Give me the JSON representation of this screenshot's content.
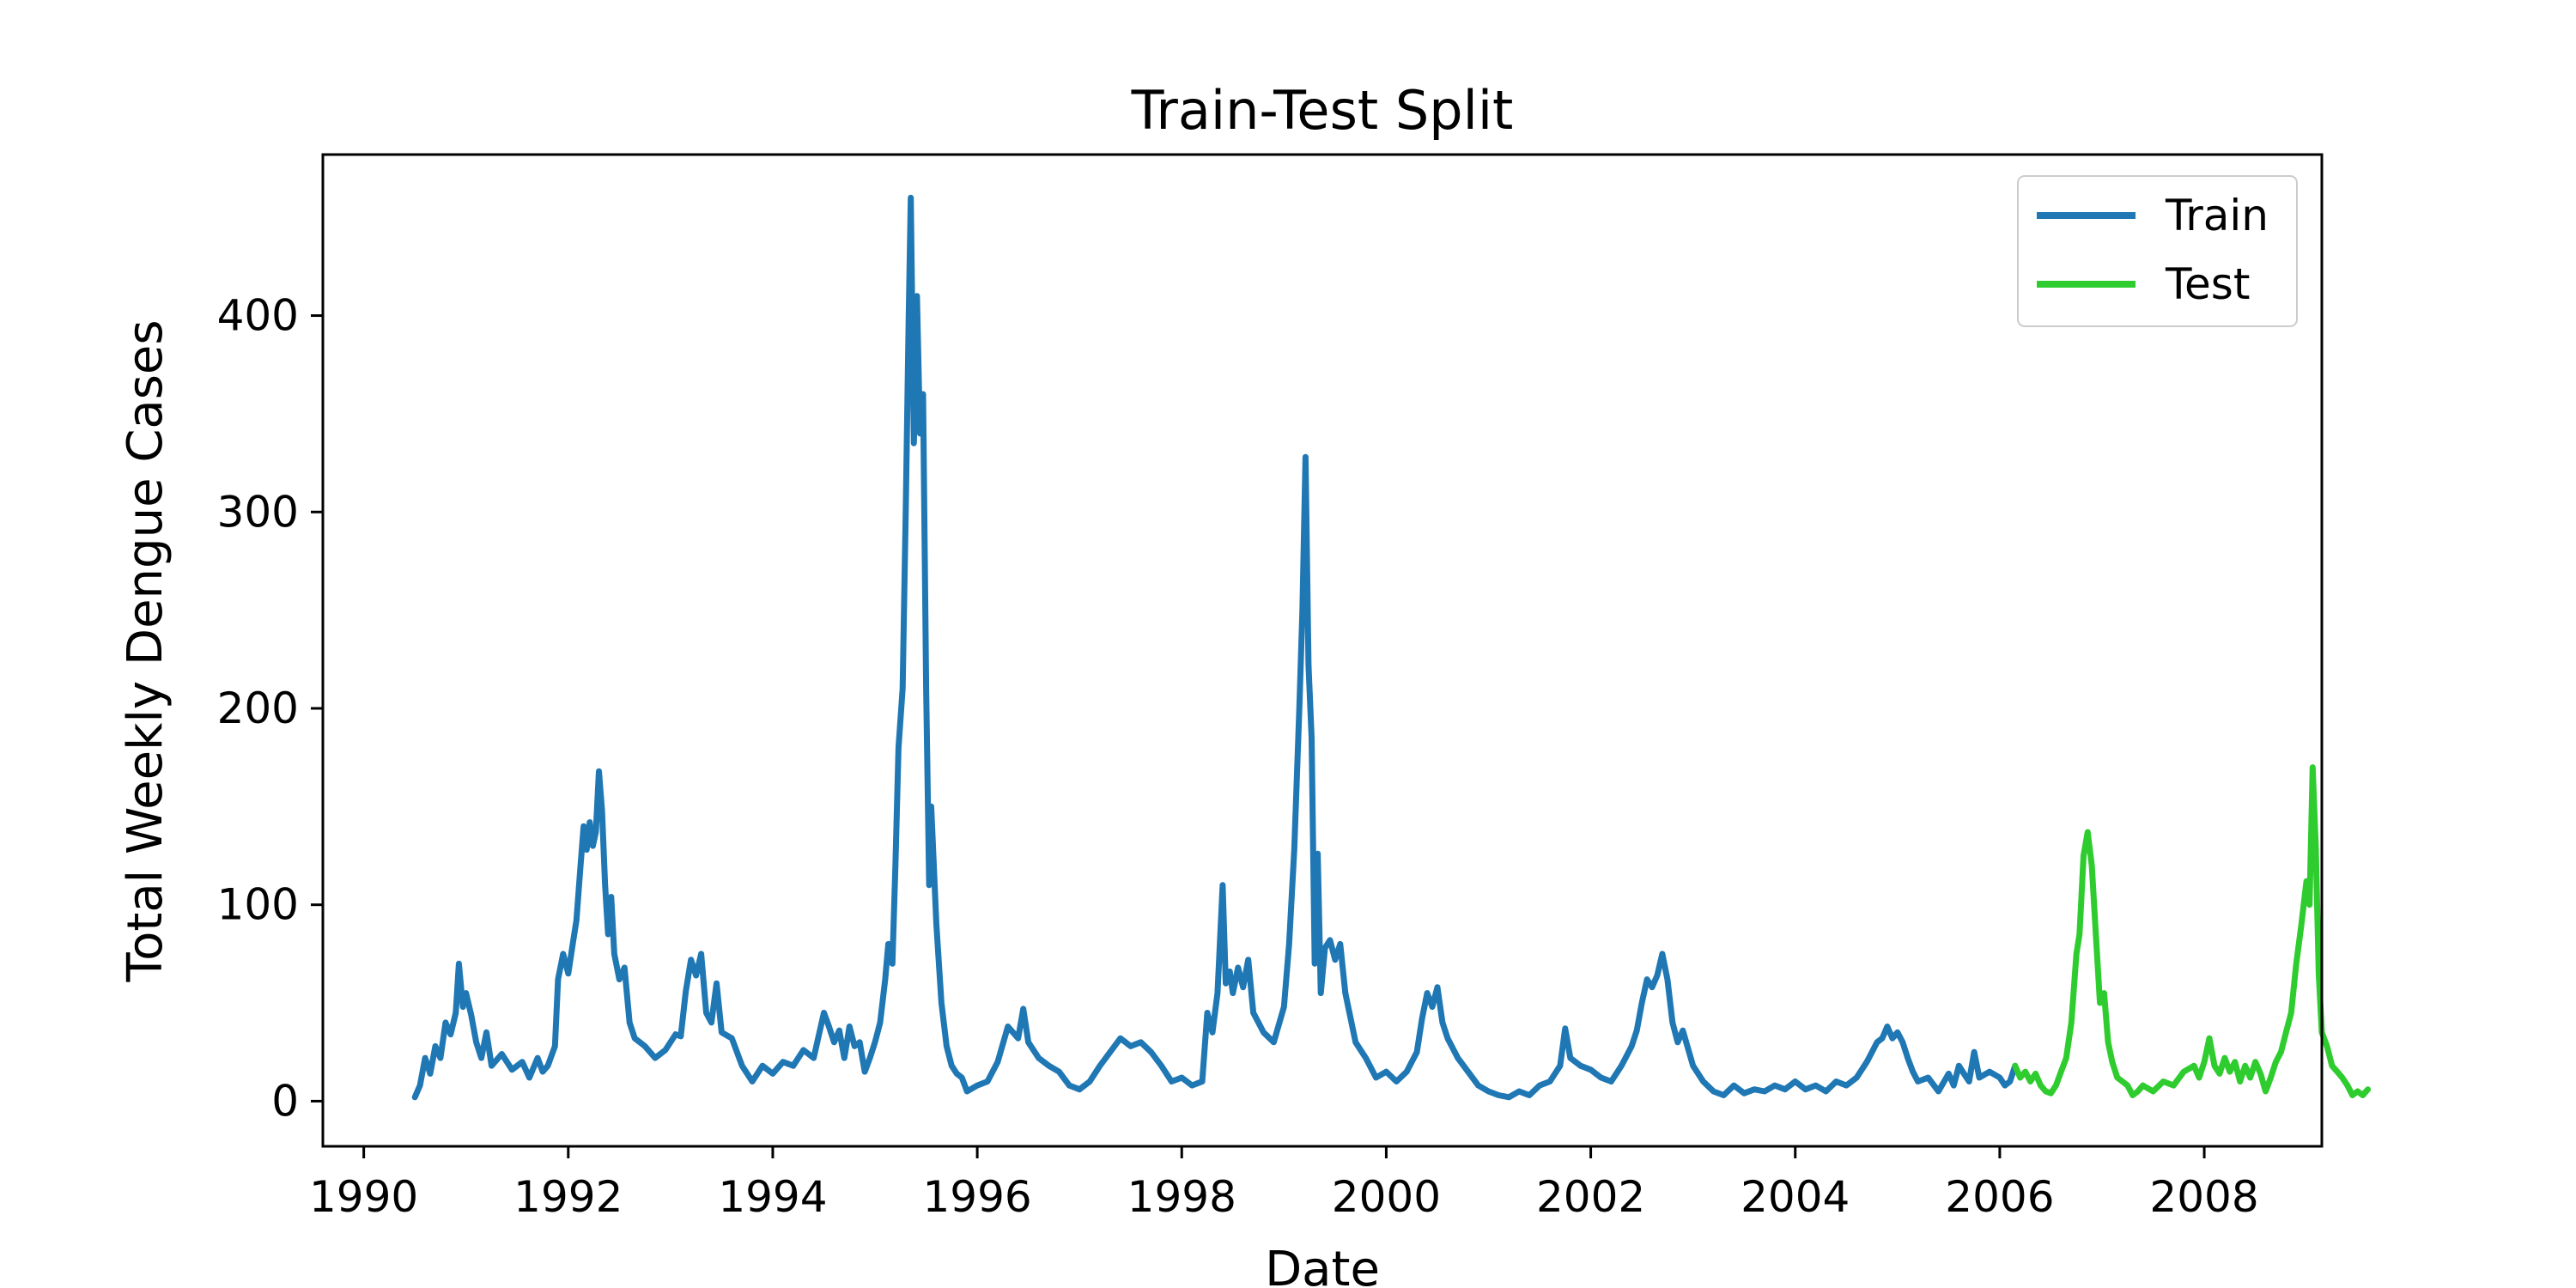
{
  "chart_data": {
    "type": "line",
    "title": "Train-Test Split",
    "xlabel": "Date",
    "ylabel": "Total Weekly Dengue Cases",
    "xlim": [
      1989.6,
      2009.15
    ],
    "ylim": [
      -23,
      482
    ],
    "grid": false,
    "legend_position": "top-right",
    "x_ticks": [
      1990,
      1992,
      1994,
      1996,
      1998,
      2000,
      2002,
      2004,
      2006,
      2008
    ],
    "y_ticks": [
      0,
      100,
      200,
      300,
      400
    ],
    "series": [
      {
        "name": "Train",
        "color": "#1f77b4",
        "points": [
          [
            1990.5,
            2
          ],
          [
            1990.55,
            8
          ],
          [
            1990.6,
            22
          ],
          [
            1990.65,
            14
          ],
          [
            1990.7,
            28
          ],
          [
            1990.75,
            22
          ],
          [
            1990.8,
            40
          ],
          [
            1990.85,
            34
          ],
          [
            1990.9,
            45
          ],
          [
            1990.93,
            70
          ],
          [
            1990.97,
            48
          ],
          [
            1991.0,
            55
          ],
          [
            1991.05,
            44
          ],
          [
            1991.1,
            30
          ],
          [
            1991.15,
            22
          ],
          [
            1991.2,
            35
          ],
          [
            1991.25,
            18
          ],
          [
            1991.35,
            24
          ],
          [
            1991.45,
            16
          ],
          [
            1991.55,
            20
          ],
          [
            1991.62,
            12
          ],
          [
            1991.7,
            22
          ],
          [
            1991.75,
            15
          ],
          [
            1991.8,
            18
          ],
          [
            1991.87,
            28
          ],
          [
            1991.9,
            62
          ],
          [
            1991.95,
            75
          ],
          [
            1992.0,
            65
          ],
          [
            1992.05,
            82
          ],
          [
            1992.08,
            92
          ],
          [
            1992.12,
            120
          ],
          [
            1992.15,
            140
          ],
          [
            1992.18,
            128
          ],
          [
            1992.21,
            142
          ],
          [
            1992.24,
            130
          ],
          [
            1992.27,
            137
          ],
          [
            1992.3,
            168
          ],
          [
            1992.33,
            148
          ],
          [
            1992.36,
            110
          ],
          [
            1992.39,
            85
          ],
          [
            1992.42,
            104
          ],
          [
            1992.45,
            75
          ],
          [
            1992.5,
            62
          ],
          [
            1992.55,
            68
          ],
          [
            1992.6,
            40
          ],
          [
            1992.65,
            32
          ],
          [
            1992.75,
            28
          ],
          [
            1992.85,
            22
          ],
          [
            1992.95,
            26
          ],
          [
            1993.05,
            34
          ],
          [
            1993.1,
            33
          ],
          [
            1993.15,
            56
          ],
          [
            1993.2,
            72
          ],
          [
            1993.25,
            64
          ],
          [
            1993.3,
            75
          ],
          [
            1993.35,
            45
          ],
          [
            1993.4,
            40
          ],
          [
            1993.45,
            60
          ],
          [
            1993.5,
            35
          ],
          [
            1993.6,
            32
          ],
          [
            1993.7,
            18
          ],
          [
            1993.8,
            10
          ],
          [
            1993.9,
            18
          ],
          [
            1994.0,
            14
          ],
          [
            1994.1,
            20
          ],
          [
            1994.2,
            18
          ],
          [
            1994.3,
            26
          ],
          [
            1994.4,
            22
          ],
          [
            1994.5,
            45
          ],
          [
            1994.55,
            38
          ],
          [
            1994.6,
            30
          ],
          [
            1994.65,
            36
          ],
          [
            1994.7,
            22
          ],
          [
            1994.75,
            38
          ],
          [
            1994.8,
            28
          ],
          [
            1994.85,
            30
          ],
          [
            1994.9,
            15
          ],
          [
            1994.95,
            22
          ],
          [
            1995.0,
            30
          ],
          [
            1995.05,
            40
          ],
          [
            1995.1,
            62
          ],
          [
            1995.13,
            80
          ],
          [
            1995.17,
            70
          ],
          [
            1995.2,
            120
          ],
          [
            1995.23,
            180
          ],
          [
            1995.27,
            210
          ],
          [
            1995.3,
            300
          ],
          [
            1995.33,
            400
          ],
          [
            1995.35,
            460
          ],
          [
            1995.38,
            335
          ],
          [
            1995.41,
            410
          ],
          [
            1995.44,
            340
          ],
          [
            1995.47,
            360
          ],
          [
            1995.5,
            210
          ],
          [
            1995.53,
            110
          ],
          [
            1995.55,
            150
          ],
          [
            1995.6,
            90
          ],
          [
            1995.65,
            50
          ],
          [
            1995.7,
            28
          ],
          [
            1995.75,
            18
          ],
          [
            1995.8,
            14
          ],
          [
            1995.85,
            12
          ],
          [
            1995.9,
            5
          ],
          [
            1996.0,
            8
          ],
          [
            1996.1,
            10
          ],
          [
            1996.2,
            20
          ],
          [
            1996.3,
            38
          ],
          [
            1996.4,
            32
          ],
          [
            1996.45,
            47
          ],
          [
            1996.5,
            30
          ],
          [
            1996.6,
            22
          ],
          [
            1996.7,
            18
          ],
          [
            1996.8,
            15
          ],
          [
            1996.9,
            8
          ],
          [
            1997.0,
            6
          ],
          [
            1997.1,
            10
          ],
          [
            1997.2,
            18
          ],
          [
            1997.3,
            25
          ],
          [
            1997.4,
            32
          ],
          [
            1997.5,
            28
          ],
          [
            1997.6,
            30
          ],
          [
            1997.7,
            25
          ],
          [
            1997.8,
            18
          ],
          [
            1997.9,
            10
          ],
          [
            1998.0,
            12
          ],
          [
            1998.1,
            8
          ],
          [
            1998.2,
            10
          ],
          [
            1998.25,
            45
          ],
          [
            1998.3,
            35
          ],
          [
            1998.35,
            55
          ],
          [
            1998.4,
            110
          ],
          [
            1998.43,
            60
          ],
          [
            1998.47,
            66
          ],
          [
            1998.5,
            55
          ],
          [
            1998.55,
            68
          ],
          [
            1998.6,
            58
          ],
          [
            1998.65,
            72
          ],
          [
            1998.7,
            45
          ],
          [
            1998.75,
            40
          ],
          [
            1998.8,
            35
          ],
          [
            1998.9,
            30
          ],
          [
            1999.0,
            48
          ],
          [
            1999.05,
            80
          ],
          [
            1999.1,
            128
          ],
          [
            1999.15,
            200
          ],
          [
            1999.18,
            250
          ],
          [
            1999.21,
            328
          ],
          [
            1999.24,
            222
          ],
          [
            1999.27,
            185
          ],
          [
            1999.3,
            70
          ],
          [
            1999.33,
            126
          ],
          [
            1999.36,
            55
          ],
          [
            1999.4,
            78
          ],
          [
            1999.45,
            82
          ],
          [
            1999.5,
            72
          ],
          [
            1999.55,
            80
          ],
          [
            1999.6,
            55
          ],
          [
            1999.7,
            30
          ],
          [
            1999.8,
            22
          ],
          [
            1999.9,
            12
          ],
          [
            2000.0,
            15
          ],
          [
            2000.1,
            10
          ],
          [
            2000.2,
            15
          ],
          [
            2000.3,
            25
          ],
          [
            2000.35,
            42
          ],
          [
            2000.4,
            55
          ],
          [
            2000.45,
            48
          ],
          [
            2000.5,
            58
          ],
          [
            2000.55,
            40
          ],
          [
            2000.6,
            32
          ],
          [
            2000.7,
            22
          ],
          [
            2000.8,
            15
          ],
          [
            2000.9,
            8
          ],
          [
            2001.0,
            5
          ],
          [
            2001.1,
            3
          ],
          [
            2001.2,
            2
          ],
          [
            2001.3,
            5
          ],
          [
            2001.4,
            3
          ],
          [
            2001.5,
            8
          ],
          [
            2001.6,
            10
          ],
          [
            2001.7,
            18
          ],
          [
            2001.75,
            37
          ],
          [
            2001.8,
            22
          ],
          [
            2001.9,
            18
          ],
          [
            2002.0,
            16
          ],
          [
            2002.1,
            12
          ],
          [
            2002.2,
            10
          ],
          [
            2002.3,
            18
          ],
          [
            2002.4,
            28
          ],
          [
            2002.45,
            36
          ],
          [
            2002.5,
            50
          ],
          [
            2002.55,
            62
          ],
          [
            2002.6,
            58
          ],
          [
            2002.65,
            64
          ],
          [
            2002.7,
            75
          ],
          [
            2002.75,
            62
          ],
          [
            2002.8,
            40
          ],
          [
            2002.85,
            30
          ],
          [
            2002.9,
            36
          ],
          [
            2003.0,
            18
          ],
          [
            2003.1,
            10
          ],
          [
            2003.2,
            5
          ],
          [
            2003.3,
            3
          ],
          [
            2003.4,
            8
          ],
          [
            2003.5,
            4
          ],
          [
            2003.6,
            6
          ],
          [
            2003.7,
            5
          ],
          [
            2003.8,
            8
          ],
          [
            2003.9,
            6
          ],
          [
            2004.0,
            10
          ],
          [
            2004.1,
            6
          ],
          [
            2004.2,
            8
          ],
          [
            2004.3,
            5
          ],
          [
            2004.4,
            10
          ],
          [
            2004.5,
            8
          ],
          [
            2004.6,
            12
          ],
          [
            2004.7,
            20
          ],
          [
            2004.75,
            25
          ],
          [
            2004.8,
            30
          ],
          [
            2004.85,
            32
          ],
          [
            2004.9,
            38
          ],
          [
            2004.95,
            32
          ],
          [
            2005.0,
            35
          ],
          [
            2005.05,
            30
          ],
          [
            2005.1,
            22
          ],
          [
            2005.15,
            15
          ],
          [
            2005.2,
            10
          ],
          [
            2005.3,
            12
          ],
          [
            2005.4,
            5
          ],
          [
            2005.5,
            14
          ],
          [
            2005.55,
            8
          ],
          [
            2005.6,
            18
          ],
          [
            2005.65,
            14
          ],
          [
            2005.7,
            10
          ],
          [
            2005.75,
            25
          ],
          [
            2005.8,
            12
          ],
          [
            2005.9,
            15
          ],
          [
            2006.0,
            12
          ],
          [
            2006.05,
            8
          ],
          [
            2006.1,
            10
          ],
          [
            2006.15,
            18
          ]
        ]
      },
      {
        "name": "Test",
        "color": "#2ecc2e",
        "points": [
          [
            2006.15,
            18
          ],
          [
            2006.2,
            12
          ],
          [
            2006.25,
            15
          ],
          [
            2006.3,
            10
          ],
          [
            2006.35,
            14
          ],
          [
            2006.4,
            8
          ],
          [
            2006.45,
            5
          ],
          [
            2006.5,
            4
          ],
          [
            2006.55,
            8
          ],
          [
            2006.6,
            15
          ],
          [
            2006.65,
            22
          ],
          [
            2006.7,
            40
          ],
          [
            2006.75,
            75
          ],
          [
            2006.78,
            85
          ],
          [
            2006.82,
            125
          ],
          [
            2006.86,
            137
          ],
          [
            2006.9,
            120
          ],
          [
            2006.94,
            85
          ],
          [
            2006.98,
            50
          ],
          [
            2007.02,
            55
          ],
          [
            2007.06,
            30
          ],
          [
            2007.1,
            20
          ],
          [
            2007.15,
            12
          ],
          [
            2007.2,
            10
          ],
          [
            2007.25,
            8
          ],
          [
            2007.3,
            3
          ],
          [
            2007.35,
            5
          ],
          [
            2007.4,
            8
          ],
          [
            2007.5,
            5
          ],
          [
            2007.6,
            10
          ],
          [
            2007.7,
            8
          ],
          [
            2007.8,
            15
          ],
          [
            2007.9,
            18
          ],
          [
            2007.95,
            12
          ],
          [
            2008.0,
            20
          ],
          [
            2008.05,
            32
          ],
          [
            2008.1,
            18
          ],
          [
            2008.15,
            14
          ],
          [
            2008.2,
            22
          ],
          [
            2008.25,
            15
          ],
          [
            2008.3,
            20
          ],
          [
            2008.35,
            10
          ],
          [
            2008.4,
            18
          ],
          [
            2008.45,
            12
          ],
          [
            2008.5,
            20
          ],
          [
            2008.55,
            14
          ],
          [
            2008.6,
            5
          ],
          [
            2008.65,
            12
          ],
          [
            2008.7,
            20
          ],
          [
            2008.75,
            25
          ],
          [
            2008.8,
            35
          ],
          [
            2008.85,
            45
          ],
          [
            2008.9,
            70
          ],
          [
            2008.95,
            90
          ],
          [
            2009.0,
            112
          ],
          [
            2009.03,
            100
          ],
          [
            2009.06,
            170
          ],
          [
            2009.09,
            130
          ],
          [
            2009.12,
            65
          ],
          [
            2009.15,
            35
          ],
          [
            2009.2,
            28
          ],
          [
            2009.25,
            18
          ],
          [
            2009.3,
            15
          ],
          [
            2009.35,
            12
          ],
          [
            2009.4,
            8
          ],
          [
            2009.45,
            3
          ],
          [
            2009.5,
            5
          ],
          [
            2009.55,
            3
          ],
          [
            2009.6,
            6
          ]
        ]
      }
    ]
  }
}
